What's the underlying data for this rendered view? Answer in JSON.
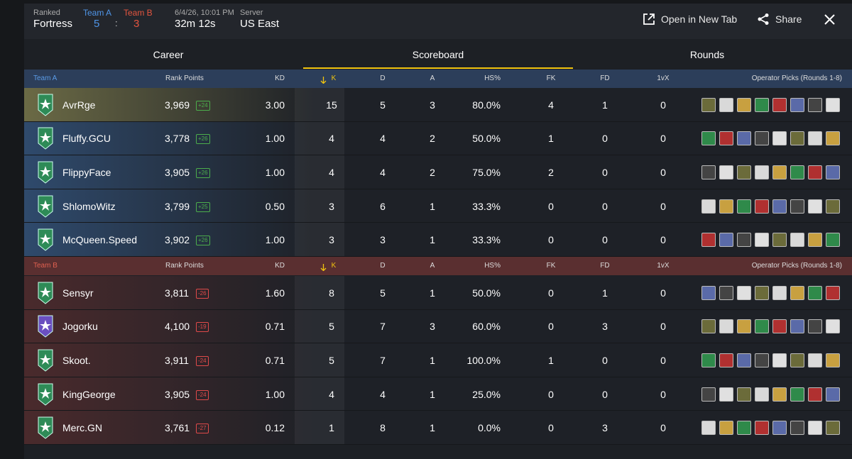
{
  "header": {
    "mode_label": "Ranked",
    "map": "Fortress",
    "team_a_label": "Team A",
    "team_a_score": "5",
    "score_separator": ":",
    "team_b_label": "Team B",
    "team_b_score": "3",
    "datetime": "6/4/26, 10:01 PM",
    "duration": "32m 12s",
    "server_label": "Server",
    "server": "US East",
    "actions": [
      "Open in New Tab",
      "Share"
    ]
  },
  "tabs": [
    "Career",
    "Scoreboard",
    "Rounds"
  ],
  "teams": [
    {
      "name": "Team A",
      "columns": [
        "Rank Points",
        "KD",
        "K",
        "D",
        "A",
        "HS%",
        "FK",
        "FD",
        "1vX",
        "Operator Picks (Rounds 1-8)"
      ],
      "rows": [
        {
          "player": "AvrRge",
          "rank_points": "3,969",
          "rank_change": "+24",
          "cells": [
            "3.00",
            "15",
            "5",
            "3",
            "80.0%",
            "4",
            "1",
            "0"
          ]
        },
        {
          "player": "Fluffy.GCU",
          "rank_points": "3,778",
          "rank_change": "+26",
          "cells": [
            "1.00",
            "4",
            "4",
            "2",
            "50.0%",
            "1",
            "0",
            "0"
          ]
        },
        {
          "player": "FlippyFace",
          "rank_points": "3,905",
          "rank_change": "+26",
          "cells": [
            "1.00",
            "4",
            "4",
            "2",
            "75.0%",
            "2",
            "0",
            "0"
          ]
        },
        {
          "player": "ShlomoWitz",
          "rank_points": "3,799",
          "rank_change": "+25",
          "cells": [
            "0.50",
            "3",
            "6",
            "1",
            "33.3%",
            "0",
            "0",
            "0"
          ]
        },
        {
          "player": "McQueen.Speed",
          "rank_points": "3,902",
          "rank_change": "+26",
          "cells": [
            "1.00",
            "3",
            "3",
            "1",
            "33.3%",
            "0",
            "0",
            "0"
          ]
        }
      ]
    },
    {
      "name": "Team B",
      "columns": [
        "Rank Points",
        "KD",
        "K",
        "D",
        "A",
        "HS%",
        "FK",
        "FD",
        "1vX",
        "Operator Picks (Rounds 1-8)"
      ],
      "rows": [
        {
          "player": "Sensyr",
          "rank_points": "3,811",
          "rank_change": "-26",
          "cells": [
            "1.60",
            "8",
            "5",
            "1",
            "50.0%",
            "0",
            "1",
            "0"
          ]
        },
        {
          "player": "Jogorku",
          "rank_points": "4,100",
          "rank_change": "-19",
          "cells": [
            "0.71",
            "5",
            "7",
            "3",
            "60.0%",
            "0",
            "3",
            "0"
          ]
        },
        {
          "player": "Skoot.",
          "rank_points": "3,911",
          "rank_change": "-24",
          "cells": [
            "0.71",
            "5",
            "7",
            "1",
            "100.0%",
            "1",
            "0",
            "0"
          ]
        },
        {
          "player": "KingGeorge",
          "rank_points": "3,905",
          "rank_change": "-24",
          "cells": [
            "1.00",
            "4",
            "4",
            "1",
            "25.0%",
            "0",
            "0",
            "0"
          ]
        },
        {
          "player": "Merc.GN",
          "rank_points": "3,761",
          "rank_change": "-27",
          "cells": [
            "0.12",
            "1",
            "8",
            "1",
            "0.0%",
            "0",
            "3",
            "0"
          ]
        }
      ]
    }
  ]
}
